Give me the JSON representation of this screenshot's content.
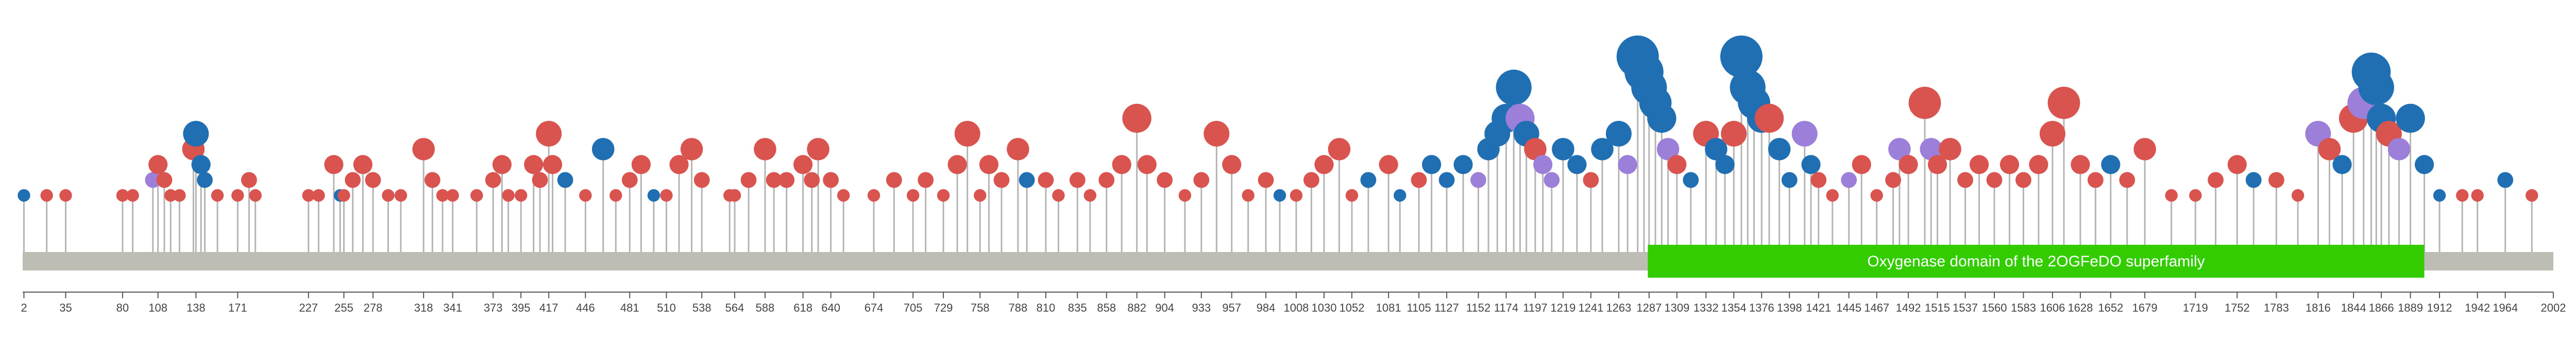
{
  "chart_data": {
    "type": "lollipop",
    "title": "",
    "xlabel": "",
    "ylabel": "",
    "xlim": [
      1,
      2002
    ],
    "grid": false,
    "colors": {
      "backbone": "#bdbdb5",
      "stem": "#b4b4b4",
      "domain": "#33cc00",
      "red": "#d9534f",
      "blue": "#1f6fb2",
      "purple": "#9b7fd9",
      "axis": "#555555"
    },
    "domains": [
      {
        "name": "Oxygenase domain of the 2OGFeDO superfamily",
        "start": 1286,
        "end": 1900
      }
    ],
    "ticks": [
      2,
      35,
      80,
      108,
      138,
      171,
      227,
      255,
      278,
      318,
      341,
      373,
      395,
      417,
      446,
      481,
      510,
      538,
      564,
      588,
      618,
      640,
      674,
      705,
      729,
      758,
      788,
      810,
      835,
      858,
      882,
      904,
      933,
      957,
      984,
      1008,
      1030,
      1052,
      1081,
      1105,
      1127,
      1152,
      1174,
      1197,
      1219,
      1241,
      1263,
      1287,
      1309,
      1332,
      1354,
      1376,
      1398,
      1421,
      1445,
      1467,
      1492,
      1515,
      1537,
      1560,
      1583,
      1606,
      1628,
      1652,
      1679,
      1719,
      1752,
      1783,
      1816,
      1844,
      1866,
      1889,
      1912,
      1942,
      1964,
      2002
    ],
    "mutations": [
      {
        "pos": 2,
        "count": 1,
        "color": "blue"
      },
      {
        "pos": 20,
        "count": 1,
        "color": "red"
      },
      {
        "pos": 35,
        "count": 1,
        "color": "red"
      },
      {
        "pos": 80,
        "count": 1,
        "color": "red"
      },
      {
        "pos": 88,
        "count": 1,
        "color": "red"
      },
      {
        "pos": 104,
        "count": 2,
        "color": "purple"
      },
      {
        "pos": 108,
        "count": 3,
        "color": "red"
      },
      {
        "pos": 113,
        "count": 2,
        "color": "red"
      },
      {
        "pos": 118,
        "count": 1,
        "color": "red"
      },
      {
        "pos": 125,
        "count": 1,
        "color": "red"
      },
      {
        "pos": 136,
        "count": 4,
        "color": "red"
      },
      {
        "pos": 138,
        "count": 5,
        "color": "blue"
      },
      {
        "pos": 142,
        "count": 3,
        "color": "blue"
      },
      {
        "pos": 145,
        "count": 2,
        "color": "blue"
      },
      {
        "pos": 155,
        "count": 1,
        "color": "red"
      },
      {
        "pos": 171,
        "count": 1,
        "color": "red"
      },
      {
        "pos": 180,
        "count": 2,
        "color": "red"
      },
      {
        "pos": 185,
        "count": 1,
        "color": "red"
      },
      {
        "pos": 227,
        "count": 1,
        "color": "red"
      },
      {
        "pos": 235,
        "count": 1,
        "color": "red"
      },
      {
        "pos": 247,
        "count": 3,
        "color": "red"
      },
      {
        "pos": 252,
        "count": 1,
        "color": "blue"
      },
      {
        "pos": 255,
        "count": 1,
        "color": "red"
      },
      {
        "pos": 262,
        "count": 2,
        "color": "red"
      },
      {
        "pos": 270,
        "count": 3,
        "color": "red"
      },
      {
        "pos": 278,
        "count": 2,
        "color": "red"
      },
      {
        "pos": 290,
        "count": 1,
        "color": "red"
      },
      {
        "pos": 300,
        "count": 1,
        "color": "red"
      },
      {
        "pos": 318,
        "count": 4,
        "color": "red"
      },
      {
        "pos": 325,
        "count": 2,
        "color": "red"
      },
      {
        "pos": 333,
        "count": 1,
        "color": "red"
      },
      {
        "pos": 341,
        "count": 1,
        "color": "red"
      },
      {
        "pos": 360,
        "count": 1,
        "color": "red"
      },
      {
        "pos": 373,
        "count": 2,
        "color": "red"
      },
      {
        "pos": 380,
        "count": 3,
        "color": "red"
      },
      {
        "pos": 385,
        "count": 1,
        "color": "red"
      },
      {
        "pos": 395,
        "count": 1,
        "color": "red"
      },
      {
        "pos": 405,
        "count": 3,
        "color": "red"
      },
      {
        "pos": 410,
        "count": 2,
        "color": "red"
      },
      {
        "pos": 417,
        "count": 5,
        "color": "red"
      },
      {
        "pos": 420,
        "count": 3,
        "color": "red"
      },
      {
        "pos": 430,
        "count": 2,
        "color": "blue"
      },
      {
        "pos": 446,
        "count": 1,
        "color": "red"
      },
      {
        "pos": 460,
        "count": 4,
        "color": "blue"
      },
      {
        "pos": 470,
        "count": 1,
        "color": "red"
      },
      {
        "pos": 481,
        "count": 2,
        "color": "red"
      },
      {
        "pos": 490,
        "count": 3,
        "color": "red"
      },
      {
        "pos": 500,
        "count": 1,
        "color": "blue"
      },
      {
        "pos": 510,
        "count": 1,
        "color": "red"
      },
      {
        "pos": 520,
        "count": 3,
        "color": "red"
      },
      {
        "pos": 530,
        "count": 4,
        "color": "red"
      },
      {
        "pos": 538,
        "count": 2,
        "color": "red"
      },
      {
        "pos": 560,
        "count": 1,
        "color": "red"
      },
      {
        "pos": 564,
        "count": 1,
        "color": "red"
      },
      {
        "pos": 575,
        "count": 2,
        "color": "red"
      },
      {
        "pos": 588,
        "count": 4,
        "color": "red"
      },
      {
        "pos": 595,
        "count": 2,
        "color": "red"
      },
      {
        "pos": 605,
        "count": 2,
        "color": "red"
      },
      {
        "pos": 618,
        "count": 3,
        "color": "red"
      },
      {
        "pos": 625,
        "count": 2,
        "color": "red"
      },
      {
        "pos": 630,
        "count": 4,
        "color": "red"
      },
      {
        "pos": 640,
        "count": 2,
        "color": "red"
      },
      {
        "pos": 650,
        "count": 1,
        "color": "red"
      },
      {
        "pos": 674,
        "count": 1,
        "color": "red"
      },
      {
        "pos": 690,
        "count": 2,
        "color": "red"
      },
      {
        "pos": 705,
        "count": 1,
        "color": "red"
      },
      {
        "pos": 715,
        "count": 2,
        "color": "red"
      },
      {
        "pos": 729,
        "count": 1,
        "color": "red"
      },
      {
        "pos": 740,
        "count": 3,
        "color": "red"
      },
      {
        "pos": 748,
        "count": 5,
        "color": "red"
      },
      {
        "pos": 758,
        "count": 1,
        "color": "red"
      },
      {
        "pos": 765,
        "count": 3,
        "color": "red"
      },
      {
        "pos": 775,
        "count": 2,
        "color": "red"
      },
      {
        "pos": 788,
        "count": 4,
        "color": "red"
      },
      {
        "pos": 795,
        "count": 2,
        "color": "blue"
      },
      {
        "pos": 810,
        "count": 2,
        "color": "red"
      },
      {
        "pos": 820,
        "count": 1,
        "color": "red"
      },
      {
        "pos": 835,
        "count": 2,
        "color": "red"
      },
      {
        "pos": 845,
        "count": 1,
        "color": "red"
      },
      {
        "pos": 858,
        "count": 2,
        "color": "red"
      },
      {
        "pos": 870,
        "count": 3,
        "color": "red"
      },
      {
        "pos": 882,
        "count": 6,
        "color": "red"
      },
      {
        "pos": 890,
        "count": 3,
        "color": "red"
      },
      {
        "pos": 904,
        "count": 2,
        "color": "red"
      },
      {
        "pos": 920,
        "count": 1,
        "color": "red"
      },
      {
        "pos": 933,
        "count": 2,
        "color": "red"
      },
      {
        "pos": 945,
        "count": 5,
        "color": "red"
      },
      {
        "pos": 957,
        "count": 3,
        "color": "red"
      },
      {
        "pos": 970,
        "count": 1,
        "color": "red"
      },
      {
        "pos": 984,
        "count": 2,
        "color": "red"
      },
      {
        "pos": 995,
        "count": 1,
        "color": "blue"
      },
      {
        "pos": 1008,
        "count": 1,
        "color": "red"
      },
      {
        "pos": 1020,
        "count": 2,
        "color": "red"
      },
      {
        "pos": 1030,
        "count": 3,
        "color": "red"
      },
      {
        "pos": 1042,
        "count": 4,
        "color": "red"
      },
      {
        "pos": 1052,
        "count": 1,
        "color": "red"
      },
      {
        "pos": 1065,
        "count": 2,
        "color": "blue"
      },
      {
        "pos": 1081,
        "count": 3,
        "color": "red"
      },
      {
        "pos": 1090,
        "count": 1,
        "color": "blue"
      },
      {
        "pos": 1105,
        "count": 2,
        "color": "red"
      },
      {
        "pos": 1115,
        "count": 3,
        "color": "blue"
      },
      {
        "pos": 1127,
        "count": 2,
        "color": "blue"
      },
      {
        "pos": 1140,
        "count": 3,
        "color": "blue"
      },
      {
        "pos": 1152,
        "count": 2,
        "color": "purple"
      },
      {
        "pos": 1160,
        "count": 4,
        "color": "blue"
      },
      {
        "pos": 1167,
        "count": 5,
        "color": "blue"
      },
      {
        "pos": 1174,
        "count": 6,
        "color": "blue"
      },
      {
        "pos": 1180,
        "count": 8,
        "color": "blue"
      },
      {
        "pos": 1185,
        "count": 6,
        "color": "purple"
      },
      {
        "pos": 1190,
        "count": 5,
        "color": "blue"
      },
      {
        "pos": 1197,
        "count": 4,
        "color": "red"
      },
      {
        "pos": 1203,
        "count": 3,
        "color": "purple"
      },
      {
        "pos": 1210,
        "count": 2,
        "color": "purple"
      },
      {
        "pos": 1219,
        "count": 4,
        "color": "blue"
      },
      {
        "pos": 1230,
        "count": 3,
        "color": "blue"
      },
      {
        "pos": 1241,
        "count": 2,
        "color": "red"
      },
      {
        "pos": 1250,
        "count": 4,
        "color": "blue"
      },
      {
        "pos": 1263,
        "count": 5,
        "color": "blue"
      },
      {
        "pos": 1270,
        "count": 3,
        "color": "purple"
      },
      {
        "pos": 1278,
        "count": 10,
        "color": "blue"
      },
      {
        "pos": 1283,
        "count": 9,
        "color": "blue"
      },
      {
        "pos": 1287,
        "count": 8,
        "color": "blue"
      },
      {
        "pos": 1292,
        "count": 7,
        "color": "blue"
      },
      {
        "pos": 1297,
        "count": 6,
        "color": "blue"
      },
      {
        "pos": 1302,
        "count": 4,
        "color": "purple"
      },
      {
        "pos": 1309,
        "count": 3,
        "color": "red"
      },
      {
        "pos": 1320,
        "count": 2,
        "color": "blue"
      },
      {
        "pos": 1332,
        "count": 5,
        "color": "red"
      },
      {
        "pos": 1340,
        "count": 4,
        "color": "blue"
      },
      {
        "pos": 1347,
        "count": 3,
        "color": "blue"
      },
      {
        "pos": 1354,
        "count": 5,
        "color": "red"
      },
      {
        "pos": 1360,
        "count": 10,
        "color": "blue"
      },
      {
        "pos": 1365,
        "count": 8,
        "color": "blue"
      },
      {
        "pos": 1370,
        "count": 7,
        "color": "blue"
      },
      {
        "pos": 1376,
        "count": 6,
        "color": "blue"
      },
      {
        "pos": 1382,
        "count": 6,
        "color": "red"
      },
      {
        "pos": 1390,
        "count": 4,
        "color": "blue"
      },
      {
        "pos": 1398,
        "count": 2,
        "color": "blue"
      },
      {
        "pos": 1410,
        "count": 5,
        "color": "purple"
      },
      {
        "pos": 1415,
        "count": 3,
        "color": "blue"
      },
      {
        "pos": 1421,
        "count": 2,
        "color": "red"
      },
      {
        "pos": 1432,
        "count": 1,
        "color": "red"
      },
      {
        "pos": 1445,
        "count": 2,
        "color": "purple"
      },
      {
        "pos": 1455,
        "count": 3,
        "color": "red"
      },
      {
        "pos": 1467,
        "count": 1,
        "color": "red"
      },
      {
        "pos": 1480,
        "count": 2,
        "color": "red"
      },
      {
        "pos": 1485,
        "count": 4,
        "color": "purple"
      },
      {
        "pos": 1492,
        "count": 3,
        "color": "red"
      },
      {
        "pos": 1505,
        "count": 7,
        "color": "red"
      },
      {
        "pos": 1510,
        "count": 4,
        "color": "purple"
      },
      {
        "pos": 1515,
        "count": 3,
        "color": "red"
      },
      {
        "pos": 1525,
        "count": 4,
        "color": "red"
      },
      {
        "pos": 1537,
        "count": 2,
        "color": "red"
      },
      {
        "pos": 1548,
        "count": 3,
        "color": "red"
      },
      {
        "pos": 1560,
        "count": 2,
        "color": "red"
      },
      {
        "pos": 1572,
        "count": 3,
        "color": "red"
      },
      {
        "pos": 1583,
        "count": 2,
        "color": "red"
      },
      {
        "pos": 1595,
        "count": 3,
        "color": "red"
      },
      {
        "pos": 1606,
        "count": 5,
        "color": "red"
      },
      {
        "pos": 1615,
        "count": 7,
        "color": "red"
      },
      {
        "pos": 1628,
        "count": 3,
        "color": "red"
      },
      {
        "pos": 1640,
        "count": 2,
        "color": "red"
      },
      {
        "pos": 1652,
        "count": 3,
        "color": "blue"
      },
      {
        "pos": 1665,
        "count": 2,
        "color": "red"
      },
      {
        "pos": 1679,
        "count": 4,
        "color": "red"
      },
      {
        "pos": 1700,
        "count": 1,
        "color": "red"
      },
      {
        "pos": 1719,
        "count": 1,
        "color": "red"
      },
      {
        "pos": 1735,
        "count": 2,
        "color": "red"
      },
      {
        "pos": 1752,
        "count": 3,
        "color": "red"
      },
      {
        "pos": 1765,
        "count": 2,
        "color": "blue"
      },
      {
        "pos": 1783,
        "count": 2,
        "color": "red"
      },
      {
        "pos": 1800,
        "count": 1,
        "color": "red"
      },
      {
        "pos": 1816,
        "count": 5,
        "color": "purple"
      },
      {
        "pos": 1825,
        "count": 4,
        "color": "red"
      },
      {
        "pos": 1835,
        "count": 3,
        "color": "blue"
      },
      {
        "pos": 1844,
        "count": 6,
        "color": "red"
      },
      {
        "pos": 1852,
        "count": 7,
        "color": "purple"
      },
      {
        "pos": 1858,
        "count": 9,
        "color": "blue"
      },
      {
        "pos": 1862,
        "count": 8,
        "color": "blue"
      },
      {
        "pos": 1866,
        "count": 6,
        "color": "blue"
      },
      {
        "pos": 1872,
        "count": 5,
        "color": "red"
      },
      {
        "pos": 1880,
        "count": 4,
        "color": "purple"
      },
      {
        "pos": 1889,
        "count": 6,
        "color": "blue"
      },
      {
        "pos": 1900,
        "count": 3,
        "color": "blue"
      },
      {
        "pos": 1912,
        "count": 1,
        "color": "blue"
      },
      {
        "pos": 1930,
        "count": 1,
        "color": "red"
      },
      {
        "pos": 1942,
        "count": 1,
        "color": "red"
      },
      {
        "pos": 1964,
        "count": 2,
        "color": "blue"
      },
      {
        "pos": 1985,
        "count": 1,
        "color": "red"
      }
    ]
  }
}
